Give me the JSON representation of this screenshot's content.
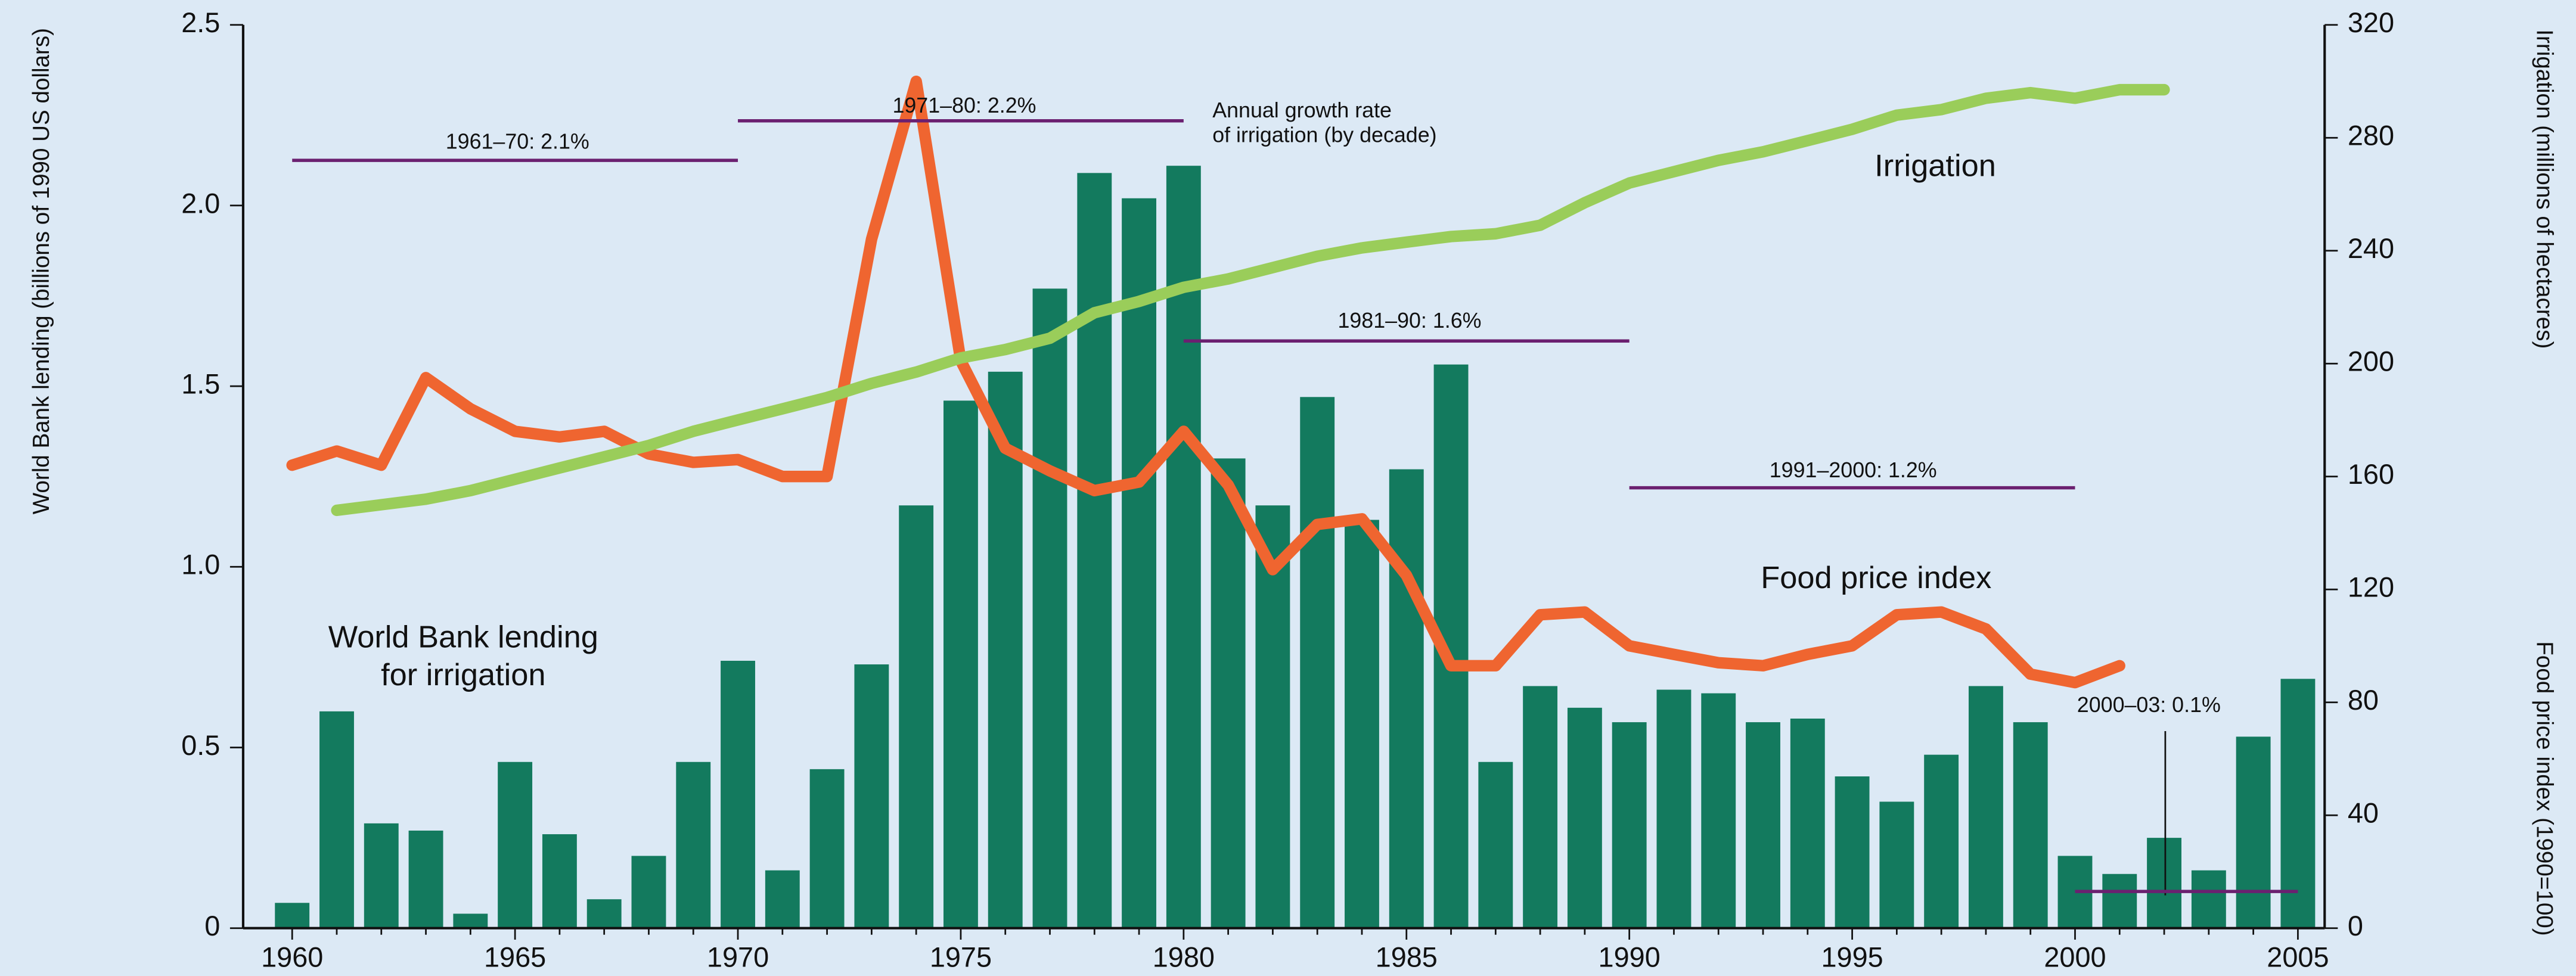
{
  "chart_data": {
    "type": "bar",
    "x": [
      1960,
      1961,
      1962,
      1963,
      1964,
      1965,
      1966,
      1967,
      1968,
      1969,
      1970,
      1971,
      1972,
      1973,
      1974,
      1975,
      1976,
      1977,
      1978,
      1979,
      1980,
      1981,
      1982,
      1983,
      1984,
      1985,
      1986,
      1987,
      1988,
      1989,
      1990,
      1991,
      1992,
      1993,
      1994,
      1995,
      1996,
      1997,
      1998,
      1999,
      2000,
      2001,
      2002,
      2003,
      2004,
      2005
    ],
    "series": [
      {
        "name": "World Bank lending for irrigation",
        "type": "bar",
        "color": "#137a5e",
        "values": [
          0.07,
          0.6,
          0.29,
          0.27,
          0.04,
          0.46,
          0.26,
          0.08,
          0.2,
          0.46,
          0.74,
          0.16,
          0.44,
          0.73,
          1.17,
          1.46,
          1.54,
          1.77,
          2.09,
          2.02,
          2.11,
          1.3,
          1.17,
          1.47,
          1.13,
          1.27,
          1.56,
          0.46,
          0.67,
          0.61,
          0.57,
          0.66,
          0.65,
          0.57,
          0.58,
          0.42,
          0.35,
          0.48,
          0.67,
          0.57,
          0.2,
          0.15,
          0.25,
          0.16,
          0.53,
          0.69
        ]
      },
      {
        "name": "Food price index",
        "type": "line",
        "axis": "y2",
        "color": "#ef6530",
        "values": [
          164,
          169,
          164,
          195,
          184,
          176,
          174,
          176,
          168,
          165,
          166,
          160,
          160,
          244,
          300,
          201,
          170,
          162,
          155,
          158,
          176,
          157,
          127,
          143,
          145,
          125,
          93,
          93,
          111,
          112,
          100,
          97,
          94,
          93,
          97,
          100,
          111,
          112,
          106,
          90,
          87,
          93,
          null,
          null,
          null,
          null
        ]
      },
      {
        "name": "Irrigation",
        "type": "line",
        "axis": "y2",
        "color": "#9acd5a",
        "values": [
          null,
          148,
          150,
          152,
          155,
          159,
          163,
          167,
          171,
          176,
          180,
          184,
          188,
          193,
          197,
          202,
          205,
          209,
          218,
          222,
          227,
          230,
          234,
          238,
          241,
          243,
          245,
          246,
          249,
          257,
          264,
          268,
          272,
          275,
          279,
          283,
          288,
          290,
          294,
          296,
          294,
          297,
          297,
          null,
          null,
          null
        ]
      }
    ],
    "xlim": [
      1958.9,
      2005.6
    ],
    "xticks": [
      1960,
      1965,
      1970,
      1975,
      1980,
      1985,
      1990,
      1995,
      2000,
      2005
    ],
    "ylim": [
      0,
      2.5
    ],
    "yticks": [
      0,
      0.5,
      {
        "value": 1,
        "label": "1.0"
      },
      1.5,
      {
        "value": 2,
        "label": "2.0"
      },
      2.5
    ],
    "y2lim": [
      0,
      320
    ],
    "y2ticks": [
      0,
      40,
      80,
      120,
      160,
      200,
      240,
      280,
      320
    ],
    "ylabel": "World Bank lending (billions of 1990 US dollars)",
    "y2label": "Irrigation (millions of hectacres)",
    "y2label_lower": "Food price index (1990=100)",
    "series_labels": {
      "lending": [
        "World Bank lending",
        "for irrigation"
      ],
      "irrigation": "Irrigation",
      "food": "Food price index"
    },
    "annotation_title": [
      "Annual growth rate",
      "of irrigation (by decade)"
    ],
    "annotation_color": "#6b2070",
    "annotations": [
      {
        "text": "1961–70: 2.1%",
        "x": [
          1960,
          1970
        ],
        "y": 272
      },
      {
        "text": "1971–80: 2.2%",
        "x": [
          1970,
          1980
        ],
        "y": 286
      },
      {
        "text": "1981–90: 1.6%",
        "x": [
          1980,
          1990
        ],
        "y": 208
      },
      {
        "text": "1991–2000: 1.2%",
        "x": [
          1990,
          2000
        ],
        "y": 156
      },
      {
        "text": "2000–03: 0.1%",
        "x": [
          2000,
          2005
        ],
        "y": 13
      }
    ]
  }
}
